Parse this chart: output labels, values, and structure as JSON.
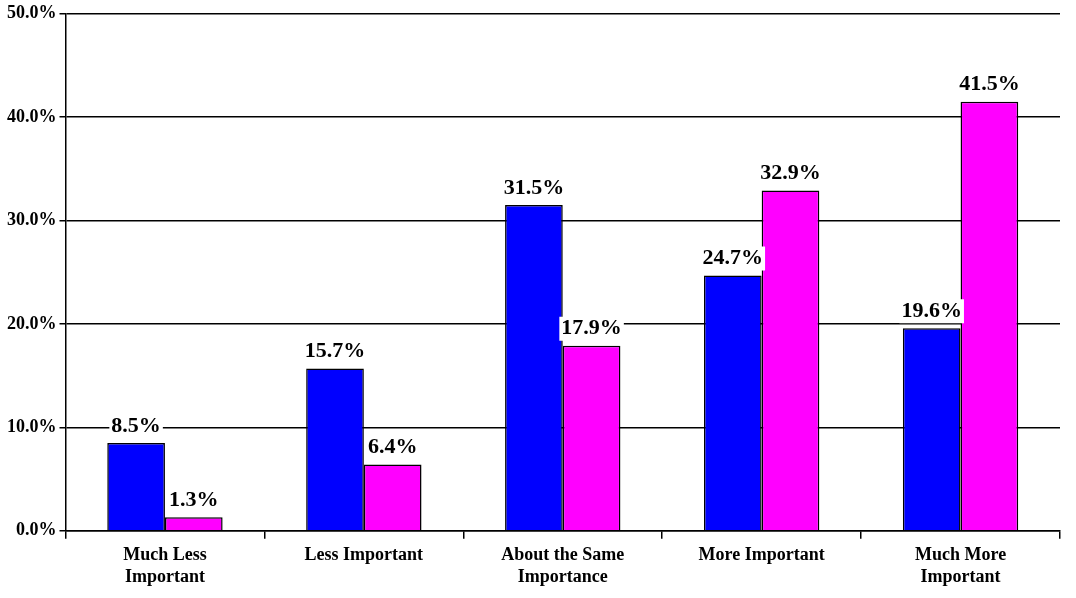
{
  "chart_data": {
    "type": "bar",
    "categories": [
      "Much Less Important",
      "Less Important",
      "About the Same Importance",
      "More Important",
      "Much More Important"
    ],
    "series": [
      {
        "color": "#0000ff",
        "values": [
          8.5,
          15.7,
          31.5,
          24.7,
          19.6
        ],
        "value_labels": [
          "8.5%",
          "15.7%",
          "31.5%",
          "24.7%",
          "19.6%"
        ]
      },
      {
        "color": "#ff00ff",
        "values": [
          1.3,
          6.4,
          17.9,
          32.9,
          41.5
        ],
        "value_labels": [
          "1.3%",
          "6.4%",
          "17.9%",
          "32.9%",
          "41.5%"
        ]
      }
    ],
    "ylim": [
      0,
      50
    ],
    "yticks": [
      {
        "value": 0,
        "label": "0.0%"
      },
      {
        "value": 10,
        "label": "10.0%"
      },
      {
        "value": 20,
        "label": "20.0%"
      },
      {
        "value": 30,
        "label": "30.0%"
      },
      {
        "value": 40,
        "label": "40.0%"
      },
      {
        "value": 50,
        "label": "50.0%"
      }
    ],
    "grid": "y",
    "legend": false
  }
}
